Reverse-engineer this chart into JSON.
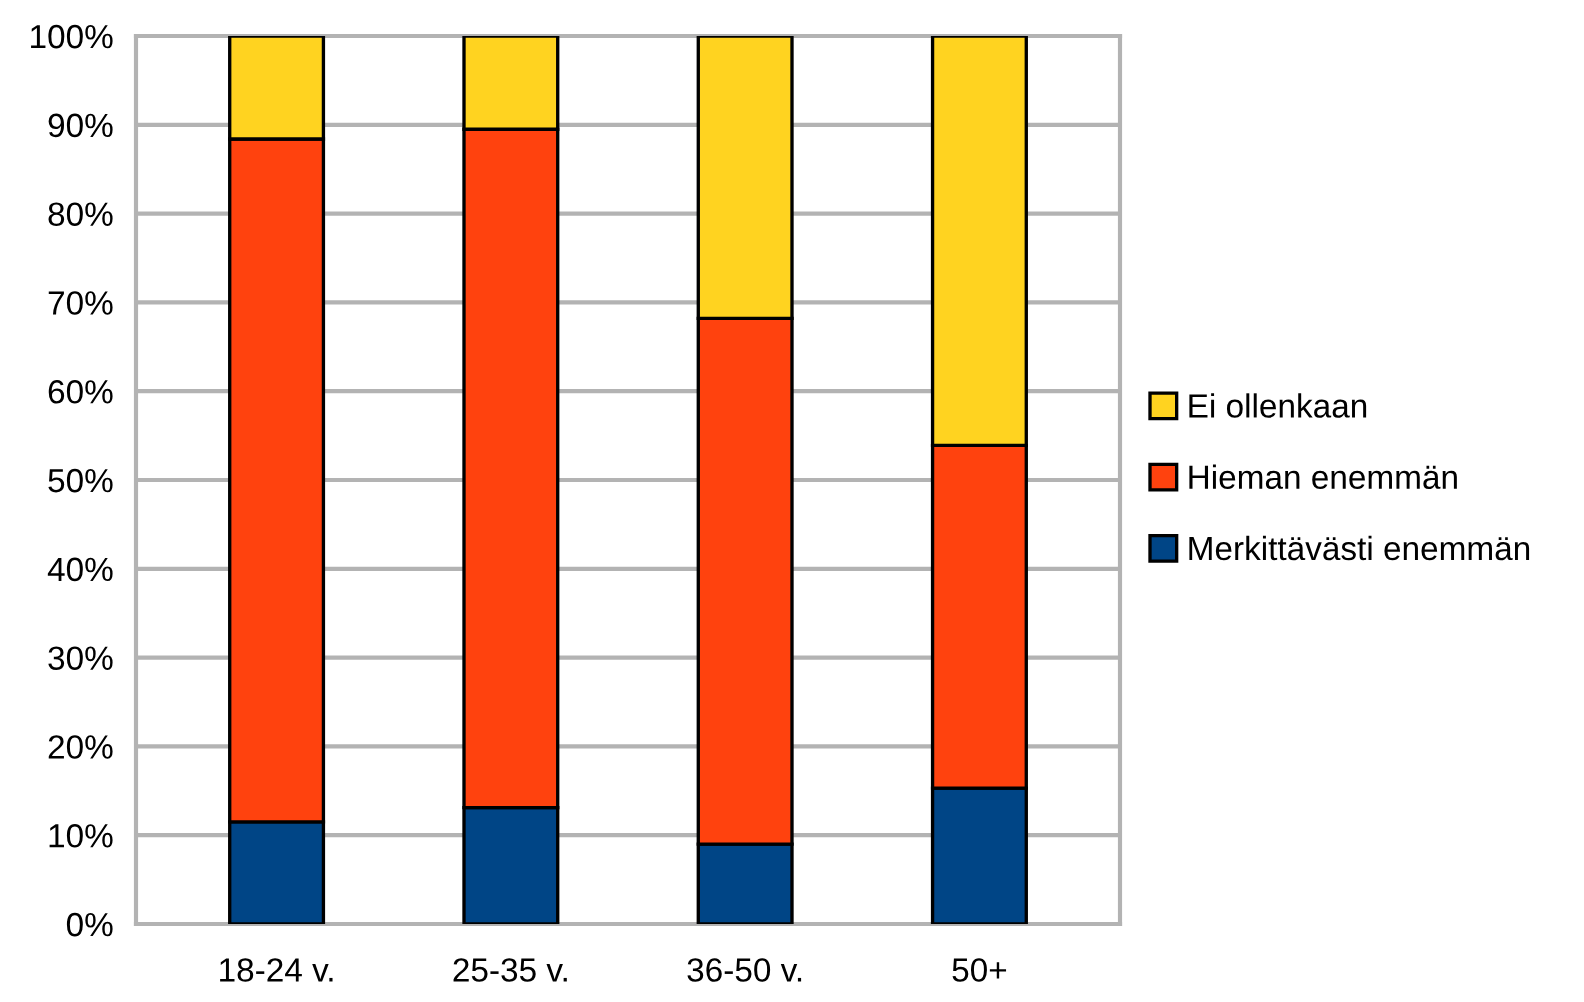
{
  "chart_data": {
    "type": "bar",
    "stacked": true,
    "categories": [
      "18-24 v.",
      "25-35 v.",
      "36-50 v.",
      "50+"
    ],
    "series": [
      {
        "name": "Merkittävästi enemmän",
        "color": "#004586",
        "values": [
          11.5,
          13.1,
          9.0,
          15.3
        ]
      },
      {
        "name": "Hieman enemmän",
        "color": "#ff420e",
        "values": [
          76.9,
          76.4,
          59.2,
          38.6
        ]
      },
      {
        "name": "Ei ollenkaan",
        "color": "#ffd320",
        "values": [
          11.6,
          10.5,
          31.8,
          46.1
        ]
      }
    ],
    "ylim": [
      0,
      100
    ],
    "yticks": [
      {
        "value": 0,
        "label": "0%"
      },
      {
        "value": 10,
        "label": "10%"
      },
      {
        "value": 20,
        "label": "20%"
      },
      {
        "value": 30,
        "label": "30%"
      },
      {
        "value": 40,
        "label": "40%"
      },
      {
        "value": 50,
        "label": "50%"
      },
      {
        "value": 60,
        "label": "60%"
      },
      {
        "value": 70,
        "label": "70%"
      },
      {
        "value": 80,
        "label": "80%"
      },
      {
        "value": 90,
        "label": "90%"
      },
      {
        "value": 100,
        "label": "100%"
      }
    ],
    "grid": "y",
    "legend": "right"
  }
}
